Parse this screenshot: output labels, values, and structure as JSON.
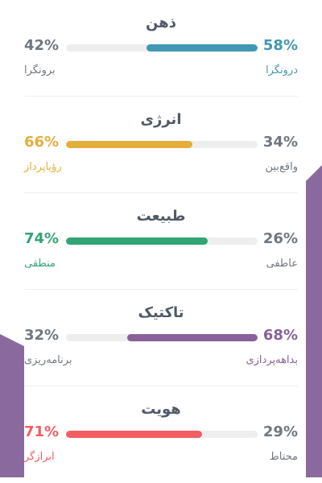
{
  "colors": {
    "deco": "#8a6a9e",
    "mind": "#4298b4",
    "energy": "#e4ae3a",
    "nature": "#33a474",
    "tactics": "#88619a",
    "identity": "#f25e62",
    "muted": "#6f7780"
  },
  "sections": [
    {
      "title": "ذهن",
      "left_pct": "42%",
      "right_pct": "58%",
      "left_trait": "برونگرا",
      "right_trait": "درونگرا",
      "fill_fraction": 0.58,
      "fill_from": "right",
      "dominant": "right",
      "color_key": "mind"
    },
    {
      "title": "انرژی",
      "left_pct": "66%",
      "right_pct": "34%",
      "left_trait": "رؤیاپرداز",
      "right_trait": "واقع‌بین",
      "fill_fraction": 0.66,
      "fill_from": "left",
      "dominant": "left",
      "color_key": "energy"
    },
    {
      "title": "طبیعت",
      "left_pct": "74%",
      "right_pct": "26%",
      "left_trait": "منطقی",
      "right_trait": "عاطفی",
      "fill_fraction": 0.74,
      "fill_from": "left",
      "dominant": "left",
      "color_key": "nature"
    },
    {
      "title": "تاکتیک",
      "left_pct": "32%",
      "right_pct": "68%",
      "left_trait": "برنامه‌ریزی",
      "right_trait": "بداهه‌پردازی",
      "fill_fraction": 0.68,
      "fill_from": "right",
      "dominant": "right",
      "color_key": "tactics"
    },
    {
      "title": "هویت",
      "left_pct": "71%",
      "right_pct": "29%",
      "left_trait": "ابرازگر",
      "right_trait": "محتاط",
      "fill_fraction": 0.71,
      "fill_from": "left",
      "dominant": "left",
      "color_key": "identity"
    }
  ]
}
